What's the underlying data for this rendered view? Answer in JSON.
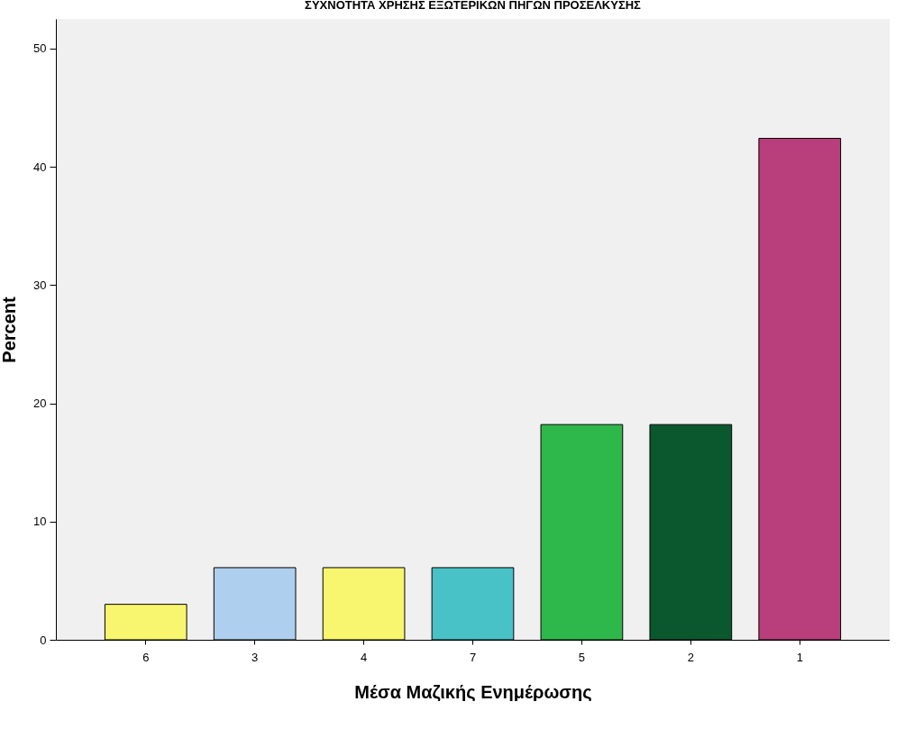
{
  "chart_data": {
    "type": "bar",
    "title": "ΣΥΧΝΟΤΗΤΑ ΧΡΗΣΗΣ ΕΞΩΤΕΡΙΚΩΝ ΠΗΓΩΝ ΠΡΟΣΕΛΚΥΣΗΣ",
    "xlabel": "Μέσα Μαζικής Ενημέρωσης",
    "ylabel": "Percent",
    "categories": [
      "6",
      "3",
      "4",
      "7",
      "5",
      "2",
      "1"
    ],
    "values": [
      3.0,
      6.1,
      6.1,
      6.1,
      18.2,
      18.2,
      42.4
    ],
    "colors": [
      "#f8f66e",
      "#aecfee",
      "#f8f66e",
      "#48c2c6",
      "#2eb84b",
      "#0b582f",
      "#b83f7b"
    ],
    "ylim": [
      0,
      52.5
    ],
    "yticks": [
      0,
      10,
      20,
      30,
      40,
      50
    ],
    "grid": false,
    "legend": false
  }
}
